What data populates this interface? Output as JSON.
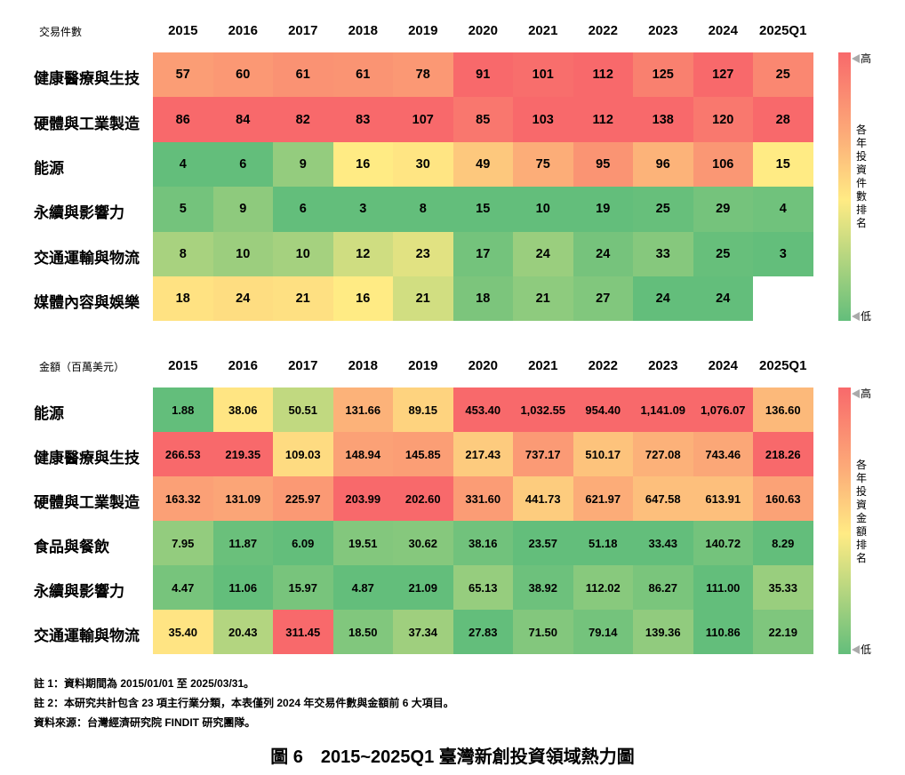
{
  "chart_data": [
    {
      "type": "heatmap",
      "title": "交易件數",
      "columns": [
        "2015",
        "2016",
        "2017",
        "2018",
        "2019",
        "2020",
        "2021",
        "2022",
        "2023",
        "2024",
        "2025Q1"
      ],
      "rows": [
        "健康醫療與生技",
        "硬體與工業製造",
        "能源",
        "永續與影響力",
        "交通運輸與物流",
        "媒體內容與娛樂"
      ],
      "values": [
        [
          "57",
          "60",
          "61",
          "61",
          "78",
          "91",
          "101",
          "112",
          "125",
          "127",
          "25"
        ],
        [
          "86",
          "84",
          "82",
          "83",
          "107",
          "85",
          "103",
          "112",
          "138",
          "120",
          "28"
        ],
        [
          "4",
          "6",
          "9",
          "16",
          "30",
          "49",
          "75",
          "95",
          "96",
          "106",
          "15"
        ],
        [
          "5",
          "9",
          "6",
          "3",
          "8",
          "15",
          "10",
          "19",
          "25",
          "29",
          "4"
        ],
        [
          "8",
          "10",
          "10",
          "12",
          "23",
          "17",
          "24",
          "24",
          "33",
          "25",
          "3"
        ],
        [
          "18",
          "24",
          "21",
          "16",
          "21",
          "18",
          "21",
          "27",
          "24",
          "24",
          null
        ]
      ],
      "color_scale": "per-column: low green, mid yellow, high red",
      "legend": {
        "high": "高",
        "low": "低",
        "title": "各年投資件數排名"
      }
    },
    {
      "type": "heatmap",
      "title": "金額（百萬美元）",
      "columns": [
        "2015",
        "2016",
        "2017",
        "2018",
        "2019",
        "2020",
        "2021",
        "2022",
        "2023",
        "2024",
        "2025Q1"
      ],
      "rows": [
        "能源",
        "健康醫療與生技",
        "硬體與工業製造",
        "食品與餐飲",
        "永續與影響力",
        "交通運輸與物流"
      ],
      "values": [
        [
          "1.88",
          "38.06",
          "50.51",
          "131.66",
          "89.15",
          "453.40",
          "1,032.55",
          "954.40",
          "1,141.09",
          "1,076.07",
          "136.60"
        ],
        [
          "266.53",
          "219.35",
          "109.03",
          "148.94",
          "145.85",
          "217.43",
          "737.17",
          "510.17",
          "727.08",
          "743.46",
          "218.26"
        ],
        [
          "163.32",
          "131.09",
          "225.97",
          "203.99",
          "202.60",
          "331.60",
          "441.73",
          "621.97",
          "647.58",
          "613.91",
          "160.63"
        ],
        [
          "7.95",
          "11.87",
          "6.09",
          "19.51",
          "30.62",
          "38.16",
          "23.57",
          "51.18",
          "33.43",
          "140.72",
          "8.29"
        ],
        [
          "4.47",
          "11.06",
          "15.97",
          "4.87",
          "21.09",
          "65.13",
          "38.92",
          "112.02",
          "86.27",
          "111.00",
          "35.33"
        ],
        [
          "35.40",
          "20.43",
          "311.45",
          "18.50",
          "37.34",
          "27.83",
          "71.50",
          "79.14",
          "139.36",
          "110.86",
          "22.19"
        ]
      ],
      "color_scale": "per-column: low green, mid yellow, high red",
      "legend": {
        "high": "高",
        "low": "低",
        "title": "各年投資金額排名"
      }
    }
  ],
  "colors": {
    "low": "#63be7b",
    "mid": "#ffeb84",
    "high": "#f8696b"
  },
  "notes": [
    "註 1：資料期間為 2015/01/01 至 2025/03/31。",
    "註 2：本研究共計包含 23 項主行業分類，本表僅列 2024 年交易件數與金額前 6 大項目。",
    "資料來源：台灣經濟研究院 FINDIT 研究團隊。"
  ],
  "caption": "圖 6　2015~2025Q1 臺灣新創投資領域熱力圖"
}
